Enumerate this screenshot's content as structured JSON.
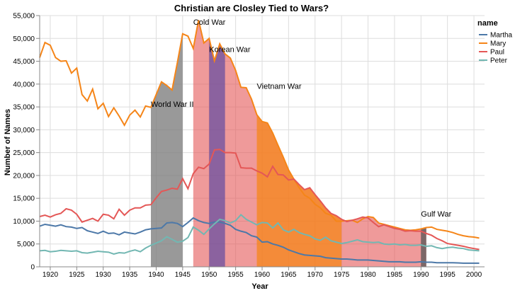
{
  "chart_data": {
    "type": "line",
    "title": "Christian are Closley Tied to Wars?",
    "xlabel": "Year",
    "ylabel": "Number of Names",
    "xlim": [
      1918,
      2002
    ],
    "ylim": [
      0,
      55000
    ],
    "x_ticks": [
      1920,
      1925,
      1930,
      1935,
      1940,
      1945,
      1950,
      1955,
      1960,
      1965,
      1970,
      1975,
      1980,
      1985,
      1990,
      1995,
      2000
    ],
    "y_ticks": [
      0,
      5000,
      10000,
      15000,
      20000,
      25000,
      30000,
      35000,
      40000,
      45000,
      50000,
      55000
    ],
    "y_tick_labels": [
      "0",
      "5,000",
      "10,000",
      "15,000",
      "20,000",
      "25,000",
      "30,000",
      "35,000",
      "40,000",
      "45,000",
      "50,000",
      "55,000"
    ],
    "grid": true,
    "legend": {
      "title": "name",
      "position": "right"
    },
    "x": [
      1918,
      1919,
      1920,
      1921,
      1922,
      1923,
      1924,
      1925,
      1926,
      1927,
      1928,
      1929,
      1930,
      1931,
      1932,
      1933,
      1934,
      1935,
      1936,
      1937,
      1938,
      1939,
      1940,
      1941,
      1942,
      1943,
      1944,
      1945,
      1946,
      1947,
      1948,
      1949,
      1950,
      1951,
      1952,
      1953,
      1954,
      1955,
      1956,
      1957,
      1958,
      1959,
      1960,
      1961,
      1962,
      1963,
      1964,
      1965,
      1966,
      1967,
      1968,
      1969,
      1970,
      1971,
      1972,
      1973,
      1974,
      1975,
      1976,
      1977,
      1978,
      1979,
      1980,
      1981,
      1982,
      1983,
      1984,
      1985,
      1986,
      1987,
      1988,
      1989,
      1990,
      1991,
      1992,
      1993,
      1994,
      1995,
      1996,
      1997,
      1998,
      1999,
      2000,
      2001
    ],
    "series": [
      {
        "name": "Martha",
        "color": "#4c78a8",
        "values": [
          8900,
          9300,
          9100,
          8900,
          9200,
          8800,
          8700,
          8400,
          8600,
          7900,
          7600,
          7300,
          7800,
          7300,
          7400,
          7000,
          7600,
          7400,
          7200,
          7600,
          8100,
          8300,
          8400,
          8500,
          9600,
          9700,
          9500,
          8800,
          9700,
          10700,
          10100,
          9700,
          9500,
          9800,
          9800,
          9500,
          9100,
          8200,
          7800,
          7500,
          6800,
          6500,
          5400,
          5500,
          5000,
          4700,
          4300,
          3700,
          3300,
          2900,
          2600,
          2500,
          2400,
          2300,
          2000,
          1900,
          1800,
          1700,
          1700,
          1600,
          1500,
          1500,
          1500,
          1400,
          1300,
          1200,
          1100,
          1100,
          1100,
          1000,
          1000,
          1000,
          1100,
          1000,
          1000,
          900,
          900,
          900,
          900,
          850,
          800,
          800,
          800,
          800
        ]
      },
      {
        "name": "Mary",
        "color": "#f58518",
        "values": [
          45800,
          49100,
          48500,
          45800,
          45000,
          45100,
          42400,
          43500,
          37700,
          36300,
          38900,
          34600,
          35800,
          32900,
          34800,
          33000,
          31000,
          33200,
          34300,
          32800,
          35200,
          34900,
          37700,
          40500,
          39700,
          38700,
          44700,
          51000,
          50500,
          47800,
          54000,
          49000,
          50000,
          45100,
          48800,
          46600,
          45700,
          43000,
          39300,
          39200,
          36700,
          33300,
          31800,
          31500,
          29300,
          26600,
          24000,
          21200,
          19200,
          17300,
          15700,
          15000,
          13700,
          12900,
          11700,
          11300,
          10000,
          10000,
          10100,
          10200,
          9700,
          10500,
          11000,
          10800,
          9600,
          9300,
          9000,
          8700,
          8400,
          8100,
          8000,
          8100,
          8300,
          8600,
          8700,
          8200,
          8000,
          7800,
          7500,
          7100,
          6800,
          6600,
          6500,
          6300
        ]
      },
      {
        "name": "Paul",
        "color": "#e45756",
        "values": [
          11000,
          11300,
          10900,
          11400,
          11700,
          12700,
          12400,
          11500,
          9800,
          10200,
          10600,
          10000,
          11500,
          11300,
          10500,
          12600,
          11300,
          12400,
          12900,
          12900,
          13500,
          13600,
          15100,
          16500,
          16800,
          17200,
          17000,
          19300,
          17100,
          20400,
          21800,
          21500,
          22500,
          25600,
          25700,
          25000,
          25000,
          24900,
          21700,
          21600,
          21600,
          21000,
          20500,
          19700,
          22000,
          20200,
          20100,
          19000,
          19200,
          18000,
          16900,
          17300,
          15800,
          14400,
          12900,
          11700,
          11200,
          10400,
          9900,
          10200,
          10500,
          10900,
          10700,
          9700,
          8800,
          9200,
          8800,
          8400,
          8200,
          7800,
          7900,
          7800,
          7800,
          7300,
          6900,
          6200,
          5700,
          5100,
          4900,
          4700,
          4500,
          4200,
          4000,
          3800
        ]
      },
      {
        "name": "Peter",
        "color": "#72b7b2",
        "values": [
          3500,
          3600,
          3300,
          3400,
          3600,
          3500,
          3400,
          3500,
          3100,
          3000,
          3200,
          3400,
          3300,
          3200,
          2800,
          3100,
          3000,
          3400,
          3700,
          3300,
          4100,
          4700,
          5200,
          5700,
          6600,
          6000,
          5400,
          5600,
          6400,
          8700,
          8000,
          7100,
          8300,
          9400,
          10400,
          10100,
          9600,
          10100,
          11400,
          10400,
          9800,
          9200,
          9700,
          9600,
          8500,
          9600,
          8100,
          7600,
          8200,
          7500,
          7100,
          6800,
          6100,
          5800,
          6500,
          5700,
          5400,
          5100,
          5300,
          5600,
          5900,
          5500,
          5400,
          5300,
          5400,
          5000,
          4900,
          5000,
          4800,
          4900,
          4700,
          4700,
          4800,
          4500,
          4600,
          4200,
          4000,
          4200,
          4300,
          4100,
          4000,
          3700,
          3600,
          3500
        ]
      }
    ],
    "wars": [
      {
        "name": "World War II",
        "start": 1939,
        "end": 1945,
        "color": "#808080",
        "fill_opacity": 0.8,
        "label_year": 1939,
        "label_value": 35000
      },
      {
        "name": "Cold War",
        "start": 1947,
        "end": 1991,
        "color": "#e45756",
        "fill_opacity": 0.6,
        "label_year": 1947,
        "label_value": 53000
      },
      {
        "name": "Korean War",
        "start": 1950,
        "end": 1953,
        "color": "#6a4fa0",
        "fill_opacity": 0.75,
        "label_year": 1950,
        "label_value": 47000
      },
      {
        "name": "Vietnam War",
        "start": 1959,
        "end": 1975,
        "color": "#f58518",
        "fill_opacity": 0.75,
        "label_year": 1959,
        "label_value": 39000
      },
      {
        "name": "Gulf War",
        "start": 1990,
        "end": 1991,
        "color": "#555555",
        "fill_opacity": 0.75,
        "label_year": 1990,
        "label_value": 11000
      }
    ]
  }
}
